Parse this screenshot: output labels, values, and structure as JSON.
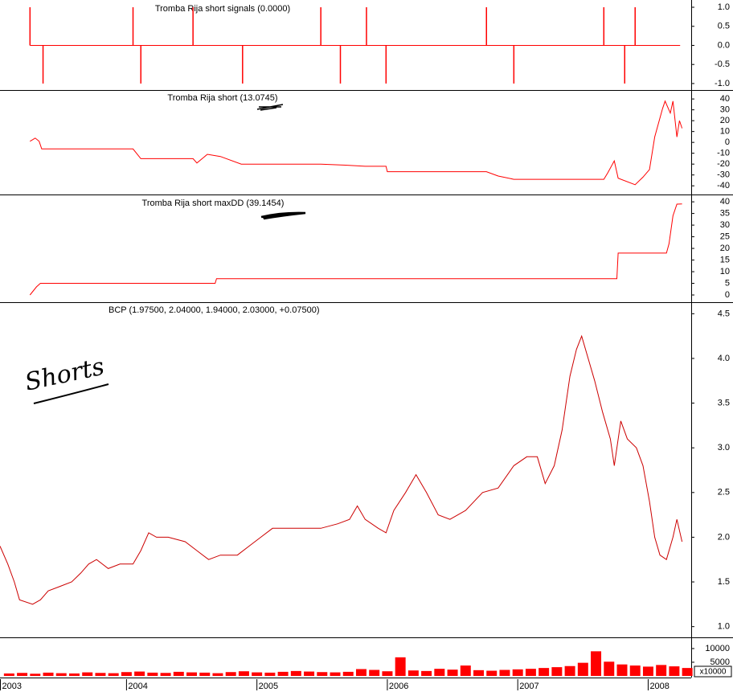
{
  "chart_data": [
    {
      "type": "signal",
      "title": "Tromba Rija short signals (0.0000)",
      "color": "#ff0000",
      "x": [
        2003.26,
        2003.36,
        2004.05,
        2004.11,
        2004.51,
        2004.89,
        2005.49,
        2005.64,
        2005.84,
        2005.99,
        2006.76,
        2006.97,
        2007.66,
        2007.82,
        2007.9
      ],
      "values": [
        1,
        -1,
        1,
        -1,
        1,
        -1,
        1,
        -1,
        1,
        -1,
        1,
        -1,
        1,
        -1,
        1
      ],
      "xlim": [
        2003.03,
        2008.33
      ],
      "ylim": [
        -1.17,
        1.19
      ],
      "yticks": [
        {
          "value": 1,
          "label": "1.0"
        },
        0.5,
        {
          "value": 0,
          "label": "0.0"
        },
        -0.5,
        {
          "value": -1,
          "label": "-1.0"
        }
      ]
    },
    {
      "type": "line",
      "title": "Tromba Rija short (13.0745)",
      "color": "#ff0000",
      "x": [
        2003.26,
        2003.3,
        2003.33,
        2003.35,
        2004.05,
        2004.11,
        2004.51,
        2004.54,
        2004.62,
        2004.72,
        2004.88,
        2005.49,
        2005.68,
        2005.83,
        2005.99,
        2006.0,
        2006.76,
        2006.85,
        2006.97,
        2007.66,
        2007.69,
        2007.74,
        2007.77,
        2007.9,
        2007.96,
        2008.01,
        2008.05,
        2008.11,
        2008.13,
        2008.17,
        2008.19,
        2008.22,
        2008.24,
        2008.26
      ],
      "values": [
        1,
        4,
        1,
        -6,
        -6,
        -15,
        -15,
        -19,
        -11,
        -13,
        -20,
        -20,
        -21,
        -22,
        -22,
        -27,
        -27,
        -31,
        -34,
        -34,
        -28,
        -17,
        -33,
        -39,
        -32,
        -25,
        5,
        31,
        38,
        27,
        38,
        5,
        20,
        13
      ],
      "xlim": [
        2003.03,
        2008.33
      ],
      "ylim": [
        -48,
        47.5
      ],
      "yticks": [
        40,
        30,
        20,
        10,
        0,
        -10,
        -20,
        -30,
        -40
      ]
    },
    {
      "type": "line",
      "title": "Tromba Rija short maxDD (39.1454)",
      "color": "#ff0000",
      "x": [
        2003.26,
        2003.31,
        2003.34,
        2004.68,
        2004.69,
        2007.76,
        2007.77,
        2008.14,
        2008.16,
        2008.19,
        2008.22,
        2008.26
      ],
      "values": [
        0,
        3.5,
        5,
        5,
        7,
        7,
        18,
        18,
        22,
        34,
        39,
        39.1
      ],
      "xlim": [
        2003.03,
        2008.33
      ],
      "ylim": [
        -3.1,
        42.8
      ],
      "yticks": [
        40,
        35,
        30,
        25,
        20,
        15,
        10,
        5,
        0
      ]
    },
    {
      "type": "line",
      "title": "BCP (1.97500, 2.04000, 1.94000, 2.03000, +0.07500)",
      "annotation": "Shorts",
      "color": "#cc0000",
      "x": [
        2003.03,
        2003.09,
        2003.14,
        2003.18,
        2003.28,
        2003.34,
        2003.4,
        2003.49,
        2003.58,
        2003.65,
        2003.71,
        2003.77,
        2003.86,
        2003.95,
        2004.05,
        2004.11,
        2004.17,
        2004.23,
        2004.32,
        2004.45,
        2004.54,
        2004.63,
        2004.72,
        2004.85,
        2004.94,
        2005.03,
        2005.12,
        2005.25,
        2005.37,
        2005.49,
        2005.62,
        2005.71,
        2005.77,
        2005.83,
        2005.93,
        2005.99,
        2006.05,
        2006.14,
        2006.22,
        2006.3,
        2006.39,
        2006.48,
        2006.6,
        2006.73,
        2006.85,
        2006.97,
        2007.07,
        2007.15,
        2007.21,
        2007.28,
        2007.34,
        2007.4,
        2007.45,
        2007.49,
        2007.54,
        2007.59,
        2007.65,
        2007.71,
        2007.74,
        2007.79,
        2007.84,
        2007.91,
        2007.96,
        2008.01,
        2008.05,
        2008.09,
        2008.14,
        2008.19,
        2008.22,
        2008.26
      ],
      "values": [
        1.9,
        1.7,
        1.5,
        1.3,
        1.25,
        1.3,
        1.4,
        1.45,
        1.5,
        1.6,
        1.7,
        1.75,
        1.65,
        1.7,
        1.7,
        1.85,
        2.05,
        2.0,
        2.0,
        1.95,
        1.85,
        1.75,
        1.8,
        1.8,
        1.9,
        2.0,
        2.1,
        2.1,
        2.1,
        2.1,
        2.15,
        2.2,
        2.35,
        2.2,
        2.1,
        2.05,
        2.3,
        2.5,
        2.7,
        2.5,
        2.25,
        2.2,
        2.3,
        2.5,
        2.55,
        2.8,
        2.9,
        2.9,
        2.6,
        2.8,
        3.2,
        3.8,
        4.1,
        4.25,
        4.0,
        3.75,
        3.4,
        3.1,
        2.8,
        3.3,
        3.1,
        3.0,
        2.8,
        2.4,
        2.0,
        1.8,
        1.75,
        2.0,
        2.2,
        1.95
      ],
      "xlim": [
        2003.03,
        2008.33
      ],
      "ylim": [
        0.88,
        4.62
      ],
      "yticks": [
        {
          "value": 4.5,
          "label": "4.5"
        },
        {
          "value": 4,
          "label": "4.0"
        },
        3.5,
        {
          "value": 3,
          "label": "3.0"
        },
        2.5,
        {
          "value": 2,
          "label": "2.0"
        },
        1.5,
        {
          "value": 1,
          "label": "1.0"
        }
      ]
    },
    {
      "type": "bar",
      "scale_label": "x10000",
      "color": "#ff0000",
      "x": [
        2003.1,
        2003.2,
        2003.3,
        2003.4,
        2003.5,
        2003.6,
        2003.7,
        2003.8,
        2003.9,
        2004.0,
        2004.1,
        2004.2,
        2004.3,
        2004.4,
        2004.5,
        2004.6,
        2004.7,
        2004.8,
        2004.9,
        2005.0,
        2005.1,
        2005.2,
        2005.3,
        2005.4,
        2005.5,
        2005.6,
        2005.7,
        2005.8,
        2005.9,
        2006.0,
        2006.1,
        2006.2,
        2006.3,
        2006.4,
        2006.5,
        2006.6,
        2006.7,
        2006.8,
        2006.9,
        2007.0,
        2007.1,
        2007.2,
        2007.3,
        2007.4,
        2007.5,
        2007.6,
        2007.7,
        2007.8,
        2007.9,
        2008.0,
        2008.1,
        2008.2,
        2008.3
      ],
      "values": [
        900,
        1100,
        800,
        1200,
        1000,
        900,
        1300,
        1100,
        1000,
        1400,
        1600,
        1200,
        1100,
        1500,
        1300,
        1200,
        1000,
        1400,
        1700,
        1300,
        1200,
        1500,
        1800,
        1600,
        1400,
        1300,
        1500,
        2500,
        2200,
        1700,
        6800,
        2000,
        1800,
        2600,
        2300,
        3800,
        2100,
        1900,
        2200,
        2400,
        2600,
        2900,
        3200,
        3600,
        4800,
        9000,
        5200,
        4200,
        3800,
        3400,
        4000,
        3500,
        2900
      ],
      "xlim": [
        2003.03,
        2008.33
      ],
      "ylim": [
        0,
        13800
      ],
      "yticks": [
        10000,
        5000
      ],
      "xticks": [
        2003,
        2004,
        2005,
        2006,
        2007,
        2008
      ]
    }
  ]
}
